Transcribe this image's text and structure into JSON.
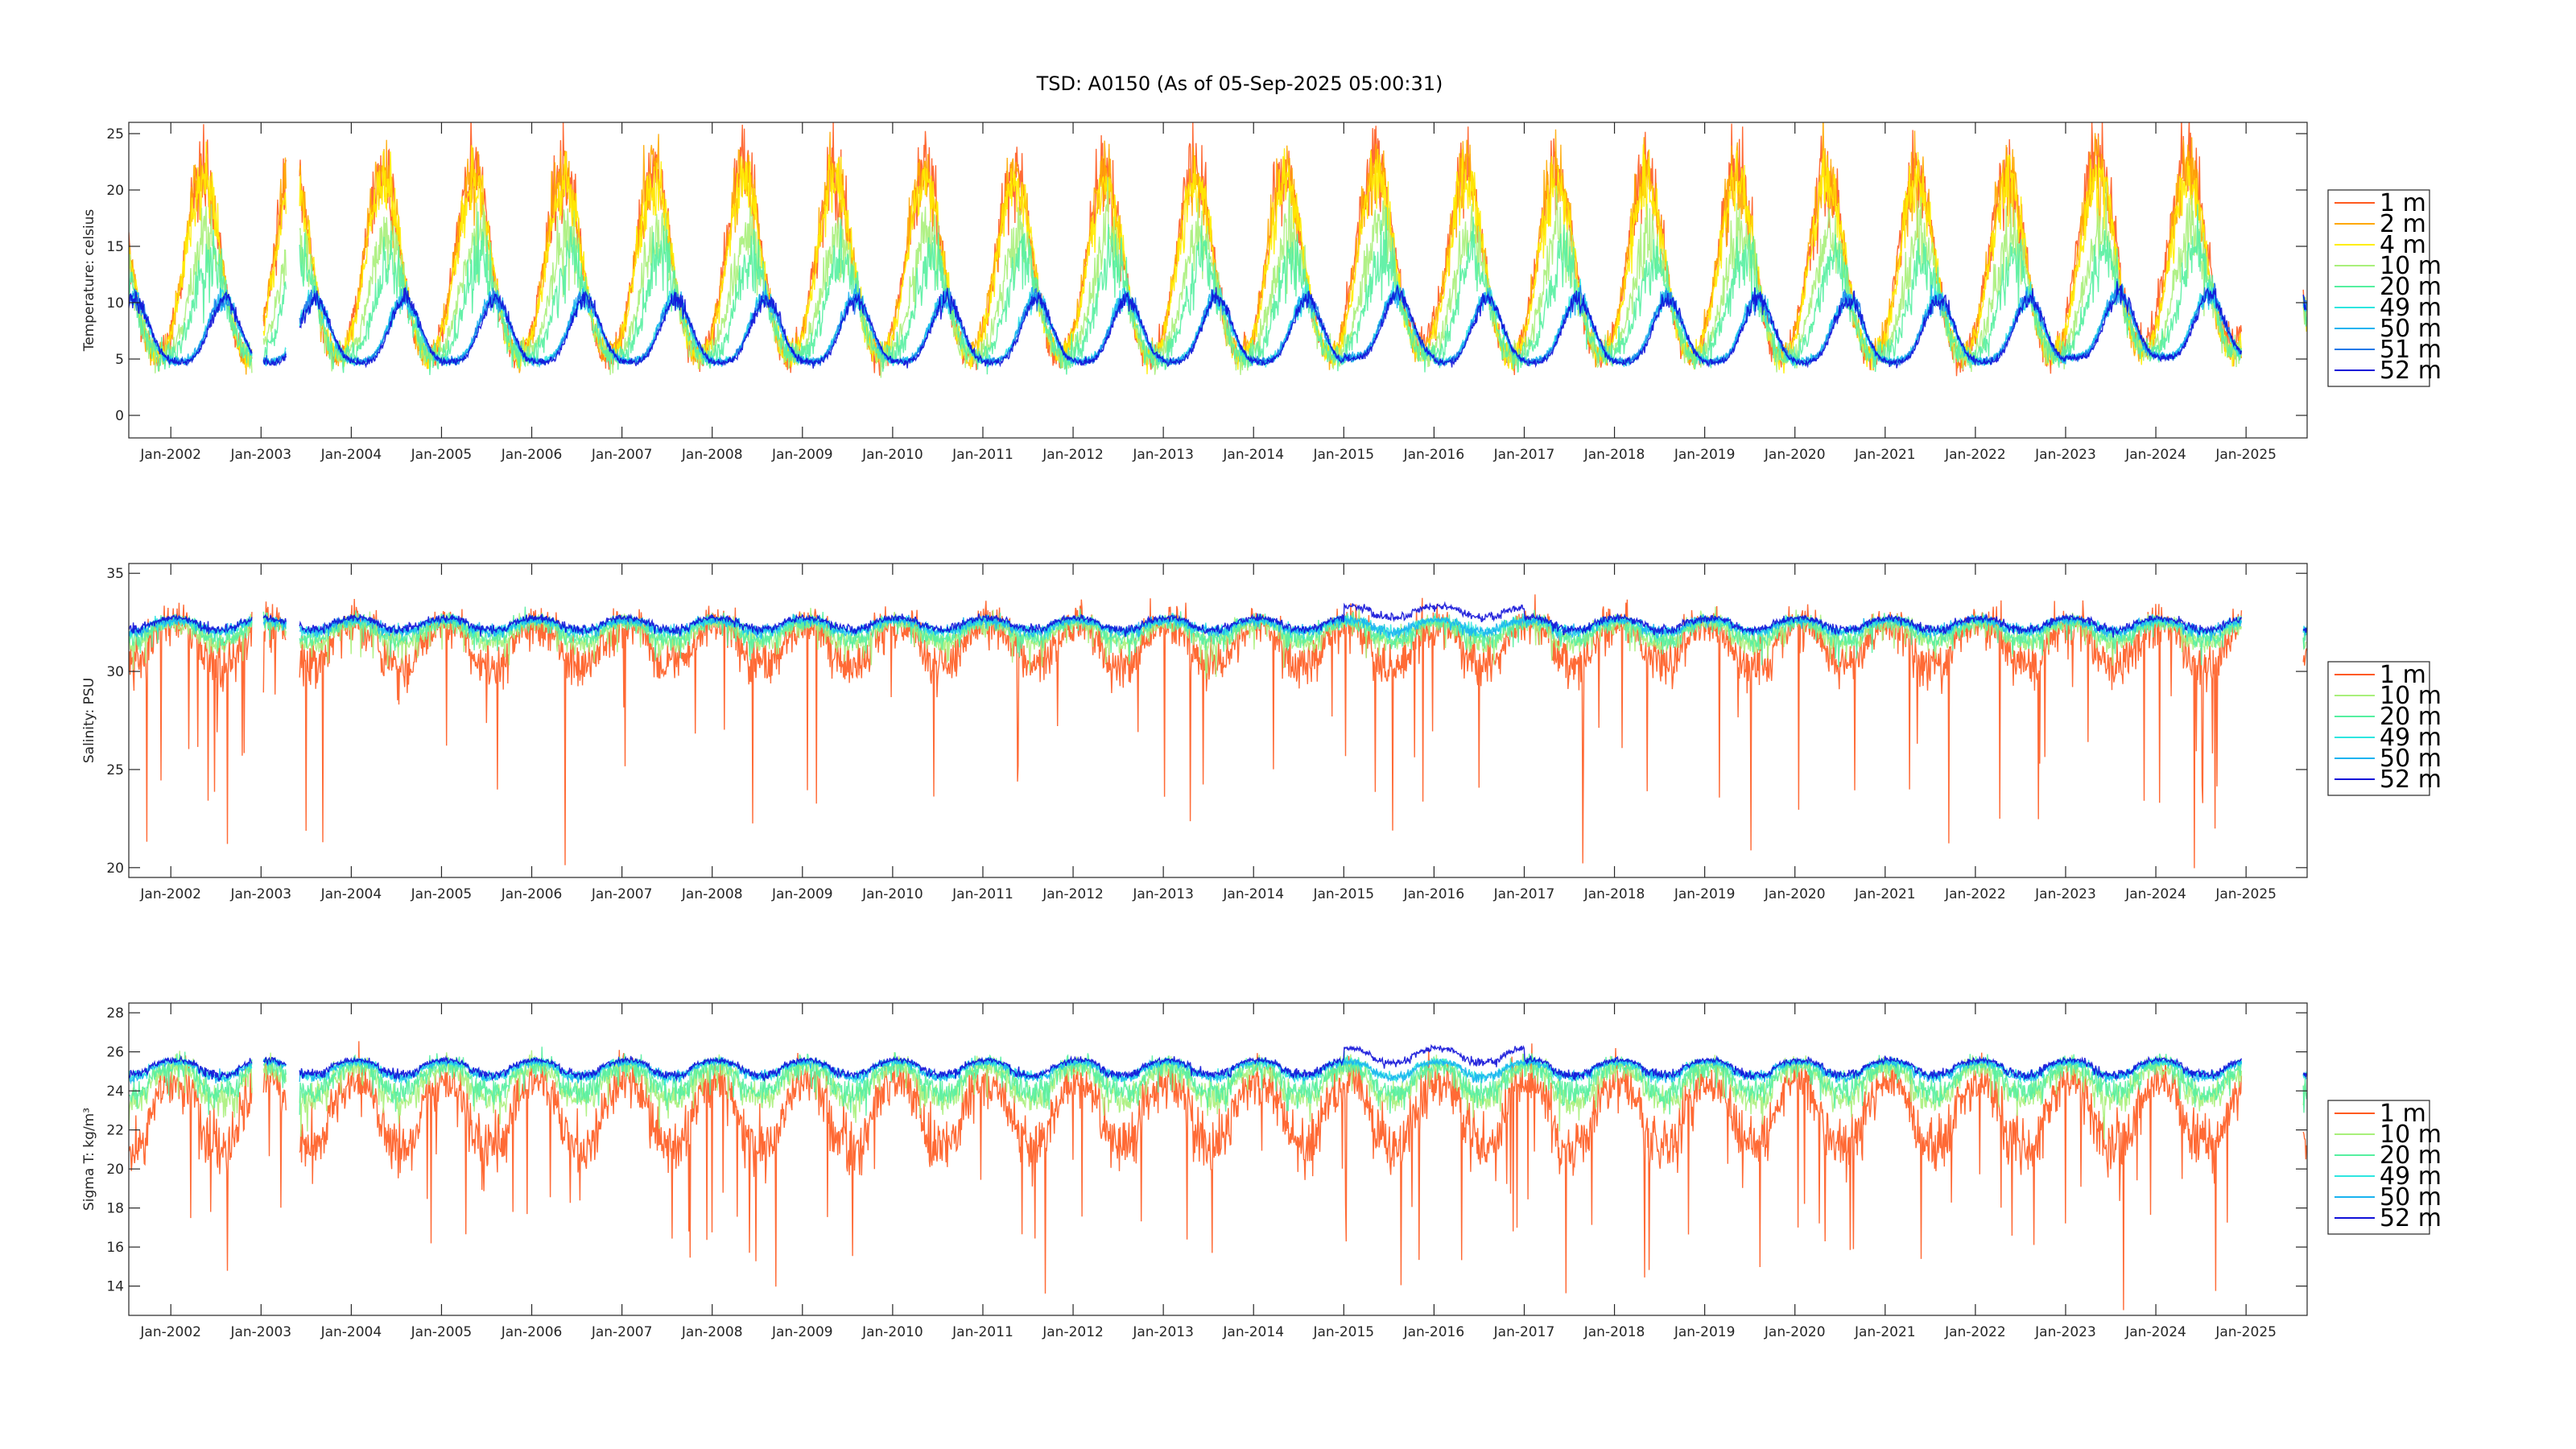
{
  "figure": {
    "title": "TSD: A0150 (As of 05-Sep-2025 05:00:31)"
  },
  "colors": {
    "1 m": "#ff5a1f",
    "2 m": "#ffa800",
    "4 m": "#ffee00",
    "10 m": "#a8f07a",
    "20 m": "#55f0a0",
    "49 m": "#2ee6e0",
    "50 m": "#19b3f0",
    "51 m": "#1f78e8",
    "52 m": "#1010d8"
  },
  "chart_data": [
    {
      "type": "line",
      "title": "",
      "xlabel": "",
      "ylabel": "Temperature: celsius",
      "xlim": [
        "2001-07-15",
        "2025-09-05"
      ],
      "ylim": [
        -2,
        26
      ],
      "yticks": [
        0,
        5,
        10,
        15,
        20,
        25
      ],
      "xticks": [
        "Jan-2002",
        "Jan-2003",
        "Jan-2004",
        "Jan-2005",
        "Jan-2006",
        "Jan-2007",
        "Jan-2008",
        "Jan-2009",
        "Jan-2010",
        "Jan-2011",
        "Jan-2012",
        "Jan-2013",
        "Jan-2014",
        "Jan-2015",
        "Jan-2016",
        "Jan-2017",
        "Jan-2018",
        "Jan-2019",
        "Jan-2020",
        "Jan-2021",
        "Jan-2022",
        "Jan-2023",
        "Jan-2024",
        "Jan-2025"
      ],
      "legend": "outside-right",
      "grid": false,
      "series": [
        {
          "name": "1 m",
          "kind": "temp",
          "base": 12.5,
          "amp": 8.2,
          "phase": 0.35,
          "noise": 1.8,
          "skew": 0.3
        },
        {
          "name": "2 m",
          "kind": "temp",
          "base": 12.5,
          "amp": 8.0,
          "phase": 0.35,
          "noise": 1.6,
          "skew": 0.3
        },
        {
          "name": "4 m",
          "kind": "temp",
          "base": 12.2,
          "amp": 7.8,
          "phase": 0.36,
          "noise": 1.5,
          "skew": 0.3
        },
        {
          "name": "10 m",
          "kind": "temp",
          "base": 9.8,
          "amp": 5.4,
          "phase": 0.4,
          "noise": 1.6,
          "skew": 0.4
        },
        {
          "name": "20 m",
          "kind": "temp",
          "base": 8.8,
          "amp": 4.4,
          "phase": 0.44,
          "noise": 1.5,
          "skew": 0.5
        },
        {
          "name": "49 m",
          "kind": "temp",
          "base": 7.0,
          "amp": 2.8,
          "phase": 0.58,
          "noise": 0.5,
          "skew": 0.6
        },
        {
          "name": "50 m",
          "kind": "temp",
          "base": 7.0,
          "amp": 2.8,
          "phase": 0.58,
          "noise": 0.45,
          "skew": 0.6
        },
        {
          "name": "51 m",
          "kind": "temp",
          "base": 7.0,
          "amp": 2.8,
          "phase": 0.59,
          "noise": 0.4,
          "skew": 0.6
        },
        {
          "name": "52 m",
          "kind": "temp",
          "base": 6.9,
          "amp": 2.8,
          "phase": 0.6,
          "noise": 0.4,
          "skew": 0.6
        }
      ]
    },
    {
      "type": "line",
      "title": "",
      "xlabel": "",
      "ylabel": "Salinity: PSU",
      "xlim": [
        "2001-07-15",
        "2025-09-05"
      ],
      "ylim": [
        19.5,
        35.5
      ],
      "yticks": [
        20,
        25,
        30,
        35
      ],
      "xticks": [
        "Jan-2002",
        "Jan-2003",
        "Jan-2004",
        "Jan-2005",
        "Jan-2006",
        "Jan-2007",
        "Jan-2008",
        "Jan-2009",
        "Jan-2010",
        "Jan-2011",
        "Jan-2012",
        "Jan-2013",
        "Jan-2014",
        "Jan-2015",
        "Jan-2016",
        "Jan-2017",
        "Jan-2018",
        "Jan-2019",
        "Jan-2020",
        "Jan-2021",
        "Jan-2022",
        "Jan-2023",
        "Jan-2024",
        "Jan-2025"
      ],
      "legend": "outside-right",
      "grid": false,
      "series": [
        {
          "name": "1 m",
          "kind": "sal",
          "base": 31.6,
          "amp": 1.6,
          "noise": 0.9,
          "spike": 6.5
        },
        {
          "name": "10 m",
          "kind": "sal",
          "base": 32.1,
          "amp": 0.8,
          "noise": 0.4,
          "spike": 1.0
        },
        {
          "name": "20 m",
          "kind": "sal",
          "base": 32.2,
          "amp": 0.7,
          "noise": 0.35,
          "spike": 0.8
        },
        {
          "name": "49 m",
          "kind": "sal",
          "base": 32.4,
          "amp": 0.45,
          "noise": 0.2,
          "spike": 0.2
        },
        {
          "name": "50 m",
          "kind": "sal",
          "base": 32.4,
          "amp": 0.45,
          "noise": 0.2,
          "spike": 0.2
        },
        {
          "name": "52 m",
          "kind": "sal",
          "base": 32.5,
          "amp": 0.45,
          "noise": 0.15,
          "spike": 0.1
        }
      ]
    },
    {
      "type": "line",
      "title": "",
      "xlabel": "",
      "ylabel": "Sigma T: kg/m³",
      "xlim": [
        "2001-07-15",
        "2025-09-05"
      ],
      "ylim": [
        12.5,
        28.5
      ],
      "yticks": [
        14,
        16,
        18,
        20,
        22,
        24,
        26,
        28
      ],
      "xticks": [
        "Jan-2002",
        "Jan-2003",
        "Jan-2004",
        "Jan-2005",
        "Jan-2006",
        "Jan-2007",
        "Jan-2008",
        "Jan-2009",
        "Jan-2010",
        "Jan-2011",
        "Jan-2012",
        "Jan-2013",
        "Jan-2014",
        "Jan-2015",
        "Jan-2016",
        "Jan-2017",
        "Jan-2018",
        "Jan-2019",
        "Jan-2020",
        "Jan-2021",
        "Jan-2022",
        "Jan-2023",
        "Jan-2024",
        "Jan-2025"
      ],
      "legend": "outside-right",
      "grid": false,
      "series": [
        {
          "name": "1 m",
          "kind": "sig",
          "base": 23.2,
          "amp": 2.6,
          "noise": 1.0,
          "spike": 5.5
        },
        {
          "name": "10 m",
          "kind": "sig",
          "base": 24.6,
          "amp": 1.3,
          "noise": 0.5,
          "spike": 1.0
        },
        {
          "name": "20 m",
          "kind": "sig",
          "base": 24.8,
          "amp": 1.1,
          "noise": 0.45,
          "spike": 0.8
        },
        {
          "name": "49 m",
          "kind": "sig",
          "base": 25.2,
          "amp": 0.6,
          "noise": 0.15,
          "spike": 0.1
        },
        {
          "name": "50 m",
          "kind": "sig",
          "base": 25.2,
          "amp": 0.6,
          "noise": 0.15,
          "spike": 0.1
        },
        {
          "name": "52 m",
          "kind": "sig",
          "base": 25.3,
          "amp": 0.6,
          "noise": 0.12,
          "spike": 0.1
        }
      ]
    }
  ]
}
